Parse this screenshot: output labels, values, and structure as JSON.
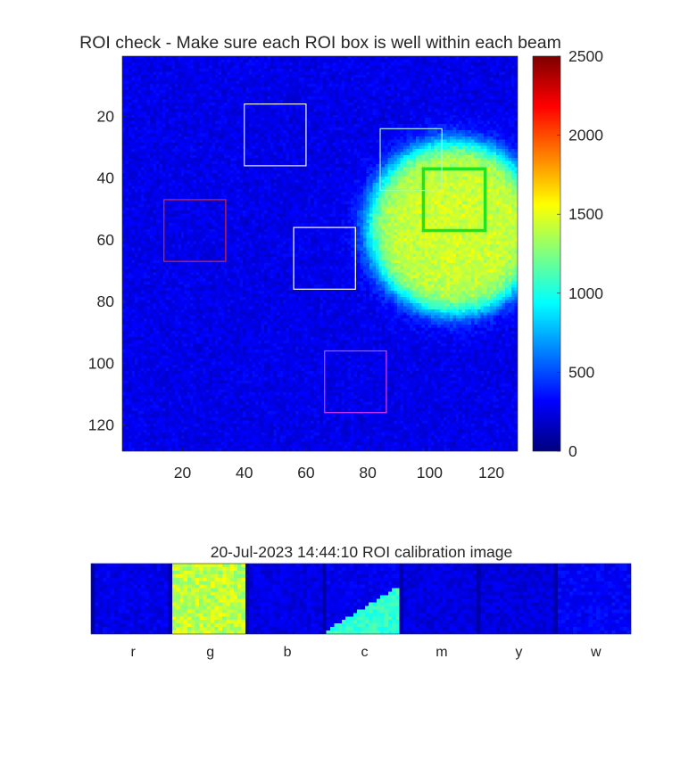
{
  "chart_data": [
    {
      "type": "heatmap",
      "title": "ROI check - Make sure each ROI box is well within each beam",
      "x_ticks": [
        20,
        40,
        60,
        80,
        100,
        120
      ],
      "y_ticks": [
        20,
        40,
        60,
        80,
        100,
        120
      ],
      "xlim": [
        0.5,
        128.5
      ],
      "ylim": [
        0.5,
        128.5
      ],
      "y_direction": "reverse",
      "colormap": "jet",
      "clim": [
        0,
        2500
      ],
      "colorbar_ticks": [
        0,
        500,
        1000,
        1500,
        2000,
        2500
      ],
      "background_level": 260,
      "beam": {
        "center_x": 108,
        "center_y": 56,
        "radius": 28,
        "peak": 1450
      },
      "roi_boxes": [
        {
          "name": "r",
          "color": "#e0282d",
          "x0": 14,
          "y0": 47,
          "x1": 34,
          "y1": 67,
          "line": "thin"
        },
        {
          "name": "g",
          "color": "#1ee61e",
          "x0": 98,
          "y0": 37,
          "x1": 118,
          "y1": 57,
          "line": "thick"
        },
        {
          "name": "b",
          "color": "#ffffff",
          "x0": 56,
          "y0": 56,
          "x1": 76,
          "y1": 76,
          "line": "thin"
        },
        {
          "name": "c",
          "color": "#a8f0ff",
          "x0": 84,
          "y0": 24,
          "x1": 104,
          "y1": 44,
          "line": "thin"
        },
        {
          "name": "m",
          "color": "#e03cf0",
          "x0": 66,
          "y0": 96,
          "x1": 86,
          "y1": 116,
          "line": "thin"
        },
        {
          "name": "w",
          "color": "#f2f2f2",
          "x0": 40,
          "y0": 16,
          "x1": 60,
          "y1": 36,
          "line": "thin"
        }
      ]
    },
    {
      "type": "heatmap",
      "title": "20-Jul-2023 14:44:10 ROI calibration image",
      "categories": [
        "r",
        "g",
        "b",
        "c",
        "m",
        "y",
        "w"
      ],
      "panel_mean_levels": [
        260,
        1400,
        250,
        600,
        240,
        230,
        300
      ],
      "colormap": "jet",
      "clim": [
        0,
        2500
      ]
    }
  ]
}
